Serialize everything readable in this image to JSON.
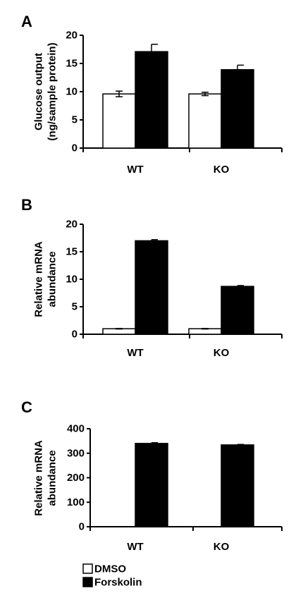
{
  "chart_data": [
    {
      "type": "bar",
      "panel": "A",
      "ylabel": [
        "Glucose output",
        "(ng/sample protein)"
      ],
      "categories": [
        "WT",
        "KO"
      ],
      "ylim": [
        0,
        20
      ],
      "yticks": [
        "0",
        "5",
        "10",
        "15",
        "20"
      ],
      "series": [
        {
          "name": "DMSO",
          "values": [
            9.6,
            9.6
          ],
          "errors": [
            0.5,
            0.3
          ]
        },
        {
          "name": "Forskolin",
          "values": [
            17.1,
            13.9
          ],
          "errors": [
            1.3,
            0.8
          ]
        }
      ]
    },
    {
      "type": "bar",
      "panel": "B",
      "ylabel": [
        "Relative mRNA",
        "abundance"
      ],
      "categories": [
        "WT",
        "KO"
      ],
      "ylim": [
        0,
        20
      ],
      "yticks": [
        "0",
        "5",
        "10",
        "15",
        "20"
      ],
      "series": [
        {
          "name": "DMSO",
          "values": [
            1.0,
            1.0
          ],
          "errors": [
            0.05,
            0.05
          ]
        },
        {
          "name": "Forskolin",
          "values": [
            17.0,
            8.7
          ],
          "errors": [
            0.2,
            0.15
          ]
        }
      ]
    },
    {
      "type": "bar",
      "panel": "C",
      "ylabel": [
        "Relative mRNA",
        "abundance"
      ],
      "categories": [
        "WT",
        "KO"
      ],
      "ylim": [
        0,
        400
      ],
      "yticks": [
        "0",
        "100",
        "200",
        "300",
        "400"
      ],
      "series": [
        {
          "name": "DMSO",
          "values": [
            0,
            0
          ],
          "errors": [
            0,
            0
          ]
        },
        {
          "name": "Forskolin",
          "values": [
            340,
            334
          ],
          "errors": [
            3,
            2
          ]
        }
      ]
    }
  ],
  "legend": [
    {
      "label": "DMSO",
      "color": "#ffffff"
    },
    {
      "label": "Forskolin",
      "color": "#000000"
    }
  ],
  "colors": {
    "dmso": "#ffffff",
    "forskolin": "#000000",
    "stroke": "#000000"
  }
}
